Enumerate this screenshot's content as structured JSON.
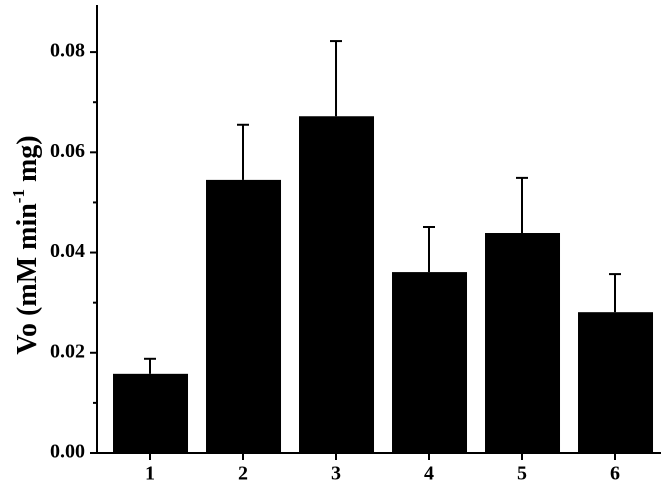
{
  "chart_data": {
    "type": "bar",
    "y_label_parts": [
      "Vo (mM min",
      "-1",
      " mg)"
    ],
    "categories": [
      "1",
      "2",
      "3",
      "4",
      "5",
      "6"
    ],
    "values": [
      0.0158,
      0.0545,
      0.0672,
      0.0361,
      0.0439,
      0.0281
    ],
    "errors": [
      0.003,
      0.011,
      0.015,
      0.009,
      0.011,
      0.0076
    ],
    "color": "#000000",
    "ylim": [
      0,
      0.0894
    ],
    "yticks": [
      {
        "value": 0,
        "label": "0.00"
      },
      {
        "value": 0.02,
        "label": "0.02"
      },
      {
        "value": 0.04,
        "label": "0.04"
      },
      {
        "value": 0.06,
        "label": "0.06"
      },
      {
        "value": 0.08,
        "label": "0.08"
      }
    ],
    "yminorticks": [
      0.01,
      0.03,
      0.05,
      0.07
    ]
  }
}
